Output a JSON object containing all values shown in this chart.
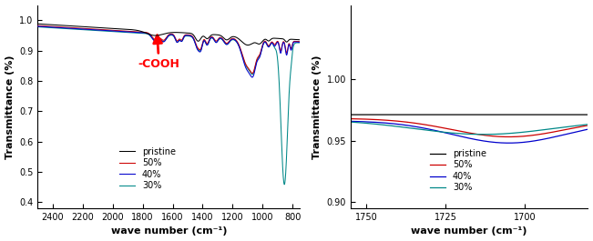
{
  "left_xlim": [
    2500,
    750
  ],
  "left_ylim": [
    0.38,
    1.05
  ],
  "left_yticks": [
    0.4,
    0.5,
    0.6,
    0.7,
    0.8,
    0.9,
    1.0
  ],
  "left_xticks": [
    2400,
    2200,
    2000,
    1800,
    1600,
    1400,
    1200,
    1000,
    800
  ],
  "right_xlim": [
    1755,
    1680
  ],
  "right_ylim": [
    0.895,
    1.06
  ],
  "right_yticks": [
    0.9,
    0.95,
    1.0
  ],
  "right_xticks": [
    1750,
    1725,
    1700
  ],
  "xlabel": "wave number (cm⁻¹)",
  "ylabel": "Transmittance (%)",
  "legend_labels": [
    "pristine",
    "50%",
    "40%",
    "30%"
  ],
  "line_colors": [
    "black",
    "#cc0000",
    "#0000cc",
    "#008888"
  ],
  "annotation_text": "-COOH",
  "annotation_color": "red",
  "annotation_fontsize": 9,
  "bg_color": "white"
}
